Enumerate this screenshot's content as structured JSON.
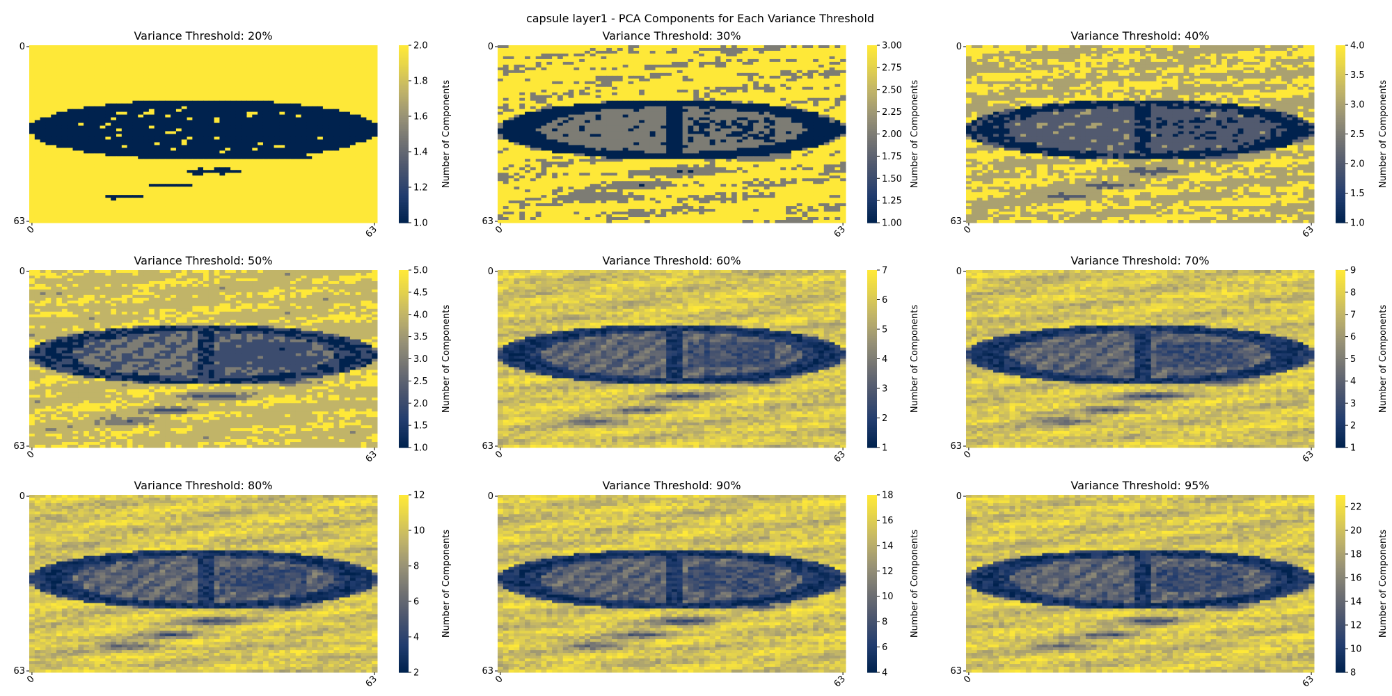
{
  "figure": {
    "suptitle": "capsule layer1 - PCA Components for Each Variance Threshold"
  },
  "colormap": {
    "name": "cividis",
    "low_color": "#00224e",
    "mid_color": "#7c7b78",
    "high_color": "#fee838"
  },
  "chart_data": [
    {
      "type": "heatmap",
      "title": "Variance Threshold: 20%",
      "threshold_percent": 20,
      "grid_size": [
        64,
        64
      ],
      "x_ticks": [
        "0",
        "63"
      ],
      "y_ticks": [
        "0",
        "63"
      ],
      "colorbar": {
        "label": "Number of Components",
        "vmin": 1,
        "vmax": 2,
        "ticks": [
          "1.0",
          "1.2",
          "1.4",
          "1.6",
          "1.8",
          "2.0"
        ]
      }
    },
    {
      "type": "heatmap",
      "title": "Variance Threshold: 30%",
      "threshold_percent": 30,
      "grid_size": [
        64,
        64
      ],
      "x_ticks": [
        "0",
        "63"
      ],
      "y_ticks": [
        "0",
        "63"
      ],
      "colorbar": {
        "label": "Number of Components",
        "vmin": 1,
        "vmax": 3,
        "ticks": [
          "1.00",
          "1.25",
          "1.50",
          "1.75",
          "2.00",
          "2.25",
          "2.50",
          "2.75",
          "3.00"
        ]
      }
    },
    {
      "type": "heatmap",
      "title": "Variance Threshold: 40%",
      "threshold_percent": 40,
      "grid_size": [
        64,
        64
      ],
      "x_ticks": [
        "0",
        "63"
      ],
      "y_ticks": [
        "0",
        "63"
      ],
      "colorbar": {
        "label": "Number of Components",
        "vmin": 1,
        "vmax": 4,
        "ticks": [
          "1.0",
          "1.5",
          "2.0",
          "2.5",
          "3.0",
          "3.5",
          "4.0"
        ]
      }
    },
    {
      "type": "heatmap",
      "title": "Variance Threshold: 50%",
      "threshold_percent": 50,
      "grid_size": [
        64,
        64
      ],
      "x_ticks": [
        "0",
        "63"
      ],
      "y_ticks": [
        "0",
        "63"
      ],
      "colorbar": {
        "label": "Number of Components",
        "vmin": 1,
        "vmax": 5,
        "ticks": [
          "1.0",
          "1.5",
          "2.0",
          "2.5",
          "3.0",
          "3.5",
          "4.0",
          "4.5",
          "5.0"
        ]
      }
    },
    {
      "type": "heatmap",
      "title": "Variance Threshold: 60%",
      "threshold_percent": 60,
      "grid_size": [
        64,
        64
      ],
      "x_ticks": [
        "0",
        "63"
      ],
      "y_ticks": [
        "0",
        "63"
      ],
      "colorbar": {
        "label": "Number of Components",
        "vmin": 1,
        "vmax": 7,
        "ticks": [
          "1",
          "2",
          "3",
          "4",
          "5",
          "6",
          "7"
        ]
      }
    },
    {
      "type": "heatmap",
      "title": "Variance Threshold: 70%",
      "threshold_percent": 70,
      "grid_size": [
        64,
        64
      ],
      "x_ticks": [
        "0",
        "63"
      ],
      "y_ticks": [
        "0",
        "63"
      ],
      "colorbar": {
        "label": "Number of Components",
        "vmin": 1,
        "vmax": 9,
        "ticks": [
          "1",
          "2",
          "3",
          "4",
          "5",
          "6",
          "7",
          "8",
          "9"
        ]
      }
    },
    {
      "type": "heatmap",
      "title": "Variance Threshold: 80%",
      "threshold_percent": 80,
      "grid_size": [
        64,
        64
      ],
      "x_ticks": [
        "0",
        "63"
      ],
      "y_ticks": [
        "0",
        "63"
      ],
      "colorbar": {
        "label": "Number of Components",
        "vmin": 2,
        "vmax": 12,
        "ticks": [
          "2",
          "4",
          "6",
          "8",
          "10",
          "12"
        ]
      }
    },
    {
      "type": "heatmap",
      "title": "Variance Threshold: 90%",
      "threshold_percent": 90,
      "grid_size": [
        64,
        64
      ],
      "x_ticks": [
        "0",
        "63"
      ],
      "y_ticks": [
        "0",
        "63"
      ],
      "colorbar": {
        "label": "Number of Components",
        "vmin": 4,
        "vmax": 18,
        "ticks": [
          "4",
          "6",
          "8",
          "10",
          "12",
          "14",
          "16",
          "18"
        ]
      }
    },
    {
      "type": "heatmap",
      "title": "Variance Threshold: 95%",
      "threshold_percent": 95,
      "grid_size": [
        64,
        64
      ],
      "x_ticks": [
        "0",
        "63"
      ],
      "y_ticks": [
        "0",
        "63"
      ],
      "colorbar": {
        "label": "Number of Components",
        "vmin": 8,
        "vmax": 23,
        "ticks": [
          "8",
          "10",
          "12",
          "14",
          "16",
          "18",
          "20",
          "22"
        ]
      }
    }
  ]
}
